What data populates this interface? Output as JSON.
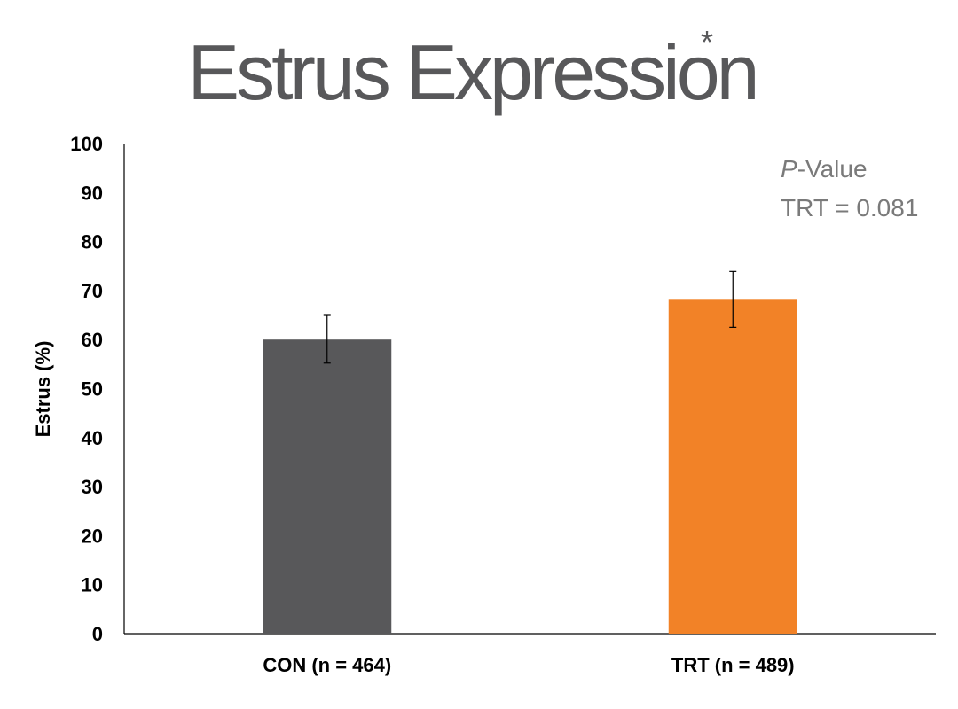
{
  "chart_data": {
    "type": "bar",
    "title": "Estrus Expression",
    "title_marker": "*",
    "categories": [
      "CON (n = 464)",
      "TRT (n = 489)"
    ],
    "values": [
      60,
      68.3
    ],
    "error_bars": [
      {
        "low": 55.2,
        "high": 65.1
      },
      {
        "low": 62.5,
        "high": 73.9
      }
    ],
    "colors": [
      "#58585a",
      "#f28227"
    ],
    "xlabel": "",
    "ylabel": "Estrus (%)",
    "ylim": [
      0,
      100
    ],
    "yticks": [
      "0",
      "10",
      "20",
      "30",
      "40",
      "50",
      "60",
      "70",
      "80",
      "90",
      "100"
    ],
    "grid": false,
    "legend": "none",
    "annotation": {
      "p_italic": "P",
      "p_rest": "-Value",
      "line2": "TRT = 0.081"
    }
  }
}
